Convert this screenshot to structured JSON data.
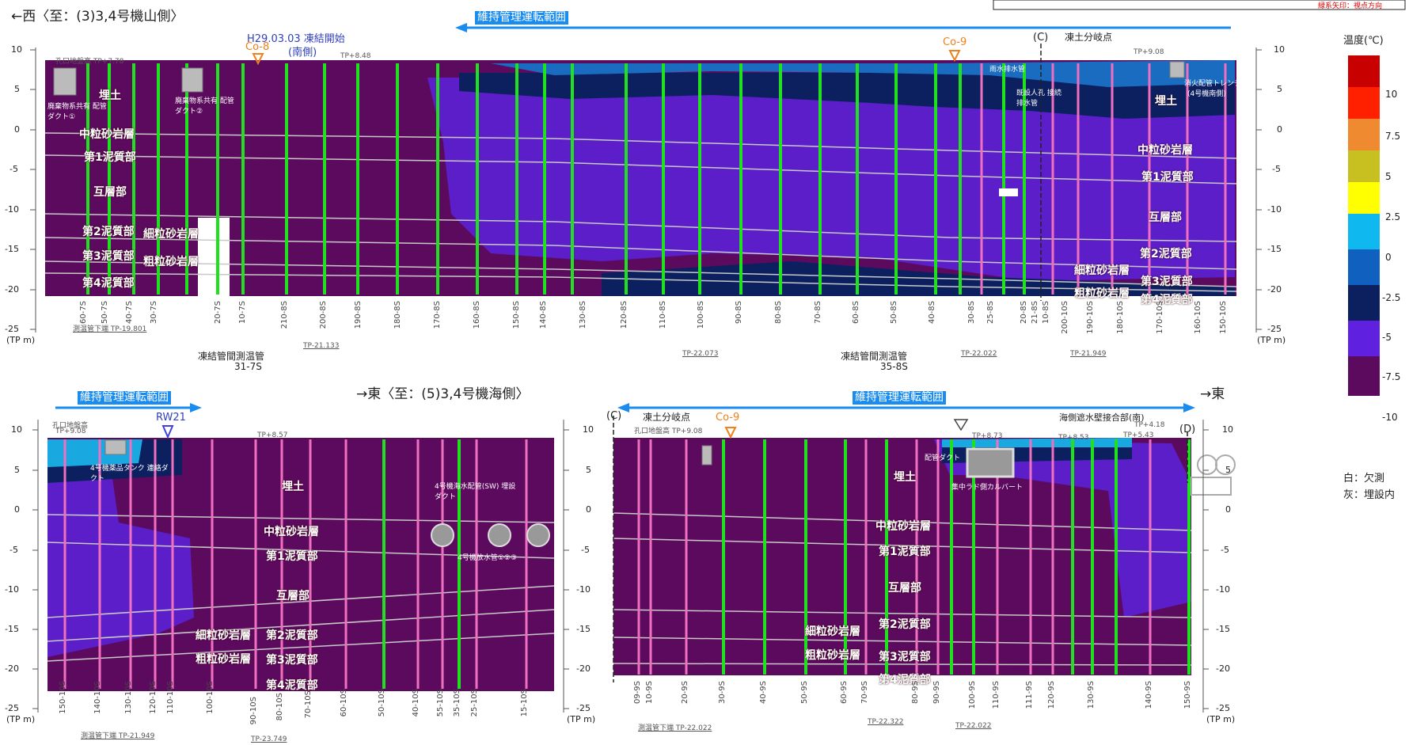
{
  "colors": {
    "purple": "#5c0a5e",
    "violet": "#5b1ec9",
    "navy": "#0c2060",
    "blue": "#1a6cc0",
    "sky": "#1aa8e0",
    "green": "#20e020",
    "pink": "#f070c0",
    "arrow_blue": "#1a8cf0"
  },
  "top": {
    "title": "←西〈至：(3)3,4号機山側〉",
    "range": "維持管理運転範囲",
    "freeze_date": "H29.03.03 凍結開始",
    "south": "(南側)",
    "co8": "Co-8",
    "co9": "Co-9",
    "c": "(C)",
    "branch": "凍土分岐点",
    "tp_ground": "孔口地盤高 TP+7.78",
    "tp848": "TP+8.48",
    "tp908": "TP+9.08",
    "waste1": "廃棄物系共有 配管ダクト①",
    "waste2": "廃棄物系共有 配管ダクト②",
    "fire": "消火配管トレンチ",
    "unit4": "(4号機南側)",
    "rainpipe": "雨水排水管",
    "drain": "既設人孔 接続排水管",
    "layers": {
      "fill": "埋土",
      "fill2": "埋土",
      "mid": "中粒砂岩層",
      "mid2": "中粒砂岩層",
      "mud1": "第1泥質部",
      "mud1b": "第1泥質部",
      "alt": "互層部",
      "alt2": "互層部",
      "mud2": "第2泥質部",
      "mud2b": "第2泥質部",
      "fine": "細粒砂岩層",
      "fine2": "細粒砂岩層",
      "coarse": "粗粒砂岩層",
      "coarse2": "粗粒砂岩層",
      "mud3": "第3泥質部",
      "mud3b": "第3泥質部",
      "mud4": "第4泥質部",
      "mud4b": "第4泥質部"
    },
    "bottom": {
      "b1": "測温管下端 TP-19.801",
      "b2": "TP-21.133",
      "b3": "TP-22.073",
      "b4": "TP-22.022",
      "b5": "TP-21.949"
    },
    "note1": "凍結管間測温管",
    "note1b": "31-7S",
    "note2": "凍結管間測温管",
    "note2b": "35-8S",
    "pipes": [
      "60-7S",
      "50-7S",
      "40-7S",
      "30-7S",
      "20-7S",
      "10-7S",
      "210-8S",
      "200-8S",
      "190-8S",
      "180-8S",
      "170-8S",
      "160-8S",
      "150-8S",
      "140-8S",
      "130-8S",
      "120-8S",
      "110-8S",
      "100-8S",
      "90-8S",
      "80-8S",
      "70-8S",
      "60-8S",
      "50-8S",
      "40-8S",
      "30-8S",
      "25-8S",
      "20-8S",
      "21-8S",
      "10-8S",
      "200-10S",
      "190-10S",
      "180-10S",
      "170-10S",
      "160-10S",
      "150-10S"
    ]
  },
  "bl": {
    "title": "→東〈至：(5)3,4号機海側〉",
    "range": "維持管理運転範囲",
    "rw": "RW21",
    "tp_ground": "孔口地盤高",
    "tp908": "TP+9.08",
    "tp857": "TP+8.57",
    "tank": "4号機薬品タンク 連絡ダクト",
    "seawater": "4号機海水配管(SW) 埋設ダクト",
    "outlet": "4号機放水管①②③",
    "layers": {
      "fill": "埋土",
      "mid": "中粒砂岩層",
      "mud1": "第1泥質部",
      "alt": "互層部",
      "fine": "細粒砂岩層",
      "mud2": "第2泥質部",
      "coarse": "粗粒砂岩層",
      "mud3": "第3泥質部",
      "mud4": "第4泥質部"
    },
    "bottom": {
      "b1": "測温管下端 TP-21.949",
      "b2": "TP-23.749"
    },
    "pipes": [
      "150-10S",
      "140-10S",
      "130-10S",
      "120-10S",
      "110-10S",
      "100-10S",
      "90-10S",
      "80-10S",
      "70-10S",
      "60-10S",
      "50-10S",
      "40-10S",
      "55-10S",
      "35-10S",
      "25-10S",
      "15-10S"
    ]
  },
  "br": {
    "range": "維持管理運転範囲",
    "east": "→東",
    "c": "(C)",
    "d": "(D)",
    "branch": "凍土分岐点",
    "co9": "Co-9",
    "tp_ground": "孔口地盤高 TP+9.08",
    "sea": "海側遮水壁接合部(南)",
    "tp873": "TP+8.73",
    "tp853": "TP+8.53",
    "tp543": "TP+5.43",
    "tp418": "TP+4.18",
    "duct": "配管ダクト",
    "culvert": "集中ラド側カルバート",
    "layers": {
      "fill": "埋土",
      "mid": "中粒砂岩層",
      "mud1": "第1泥質部",
      "alt": "互層部",
      "fine": "細粒砂岩層",
      "mud2": "第2泥質部",
      "coarse": "粗粒砂岩層",
      "mud3": "第3泥質部",
      "mud4": "第4泥質部"
    },
    "bottom": {
      "b1": "測温管下端 TP-22.022",
      "b2": "TP-22.322",
      "b3": "TP-22.022"
    },
    "pipes": [
      "09-9S",
      "10-9S",
      "20-9S",
      "30-9S",
      "40-9S",
      "50-9S",
      "60-9S",
      "70-9S",
      "80-9S",
      "90-9S",
      "100-9S",
      "110-9S",
      "111-9S",
      "120-9S",
      "130-9S",
      "140-9S",
      "150-9S"
    ]
  },
  "legend": {
    "title": "温度(℃)",
    "ticks": [
      "10",
      "7.5",
      "5",
      "2.5",
      "0",
      "-2.5",
      "-5",
      "-7.5",
      "-10"
    ],
    "white": "白：欠測",
    "gray": "灰：埋設内",
    "tp": "(TP m)",
    "colors": [
      "#c80000",
      "#ff2000",
      "#f08a30",
      "#c8c020",
      "#ffff00",
      "#10b8f0",
      "#1060c0",
      "#0c2060",
      "#6020e0",
      "#5c0a5e"
    ]
  },
  "axis": {
    "top": [
      "10",
      "5",
      "0",
      "-5",
      "-10",
      "-15",
      "-20",
      "-25"
    ],
    "bl": [
      "10",
      "5",
      "0",
      "-5",
      "-10",
      "-15",
      "-20",
      "-25"
    ],
    "unit": "(TP m)"
  },
  "corner": "緑系矢印：視点方向"
}
